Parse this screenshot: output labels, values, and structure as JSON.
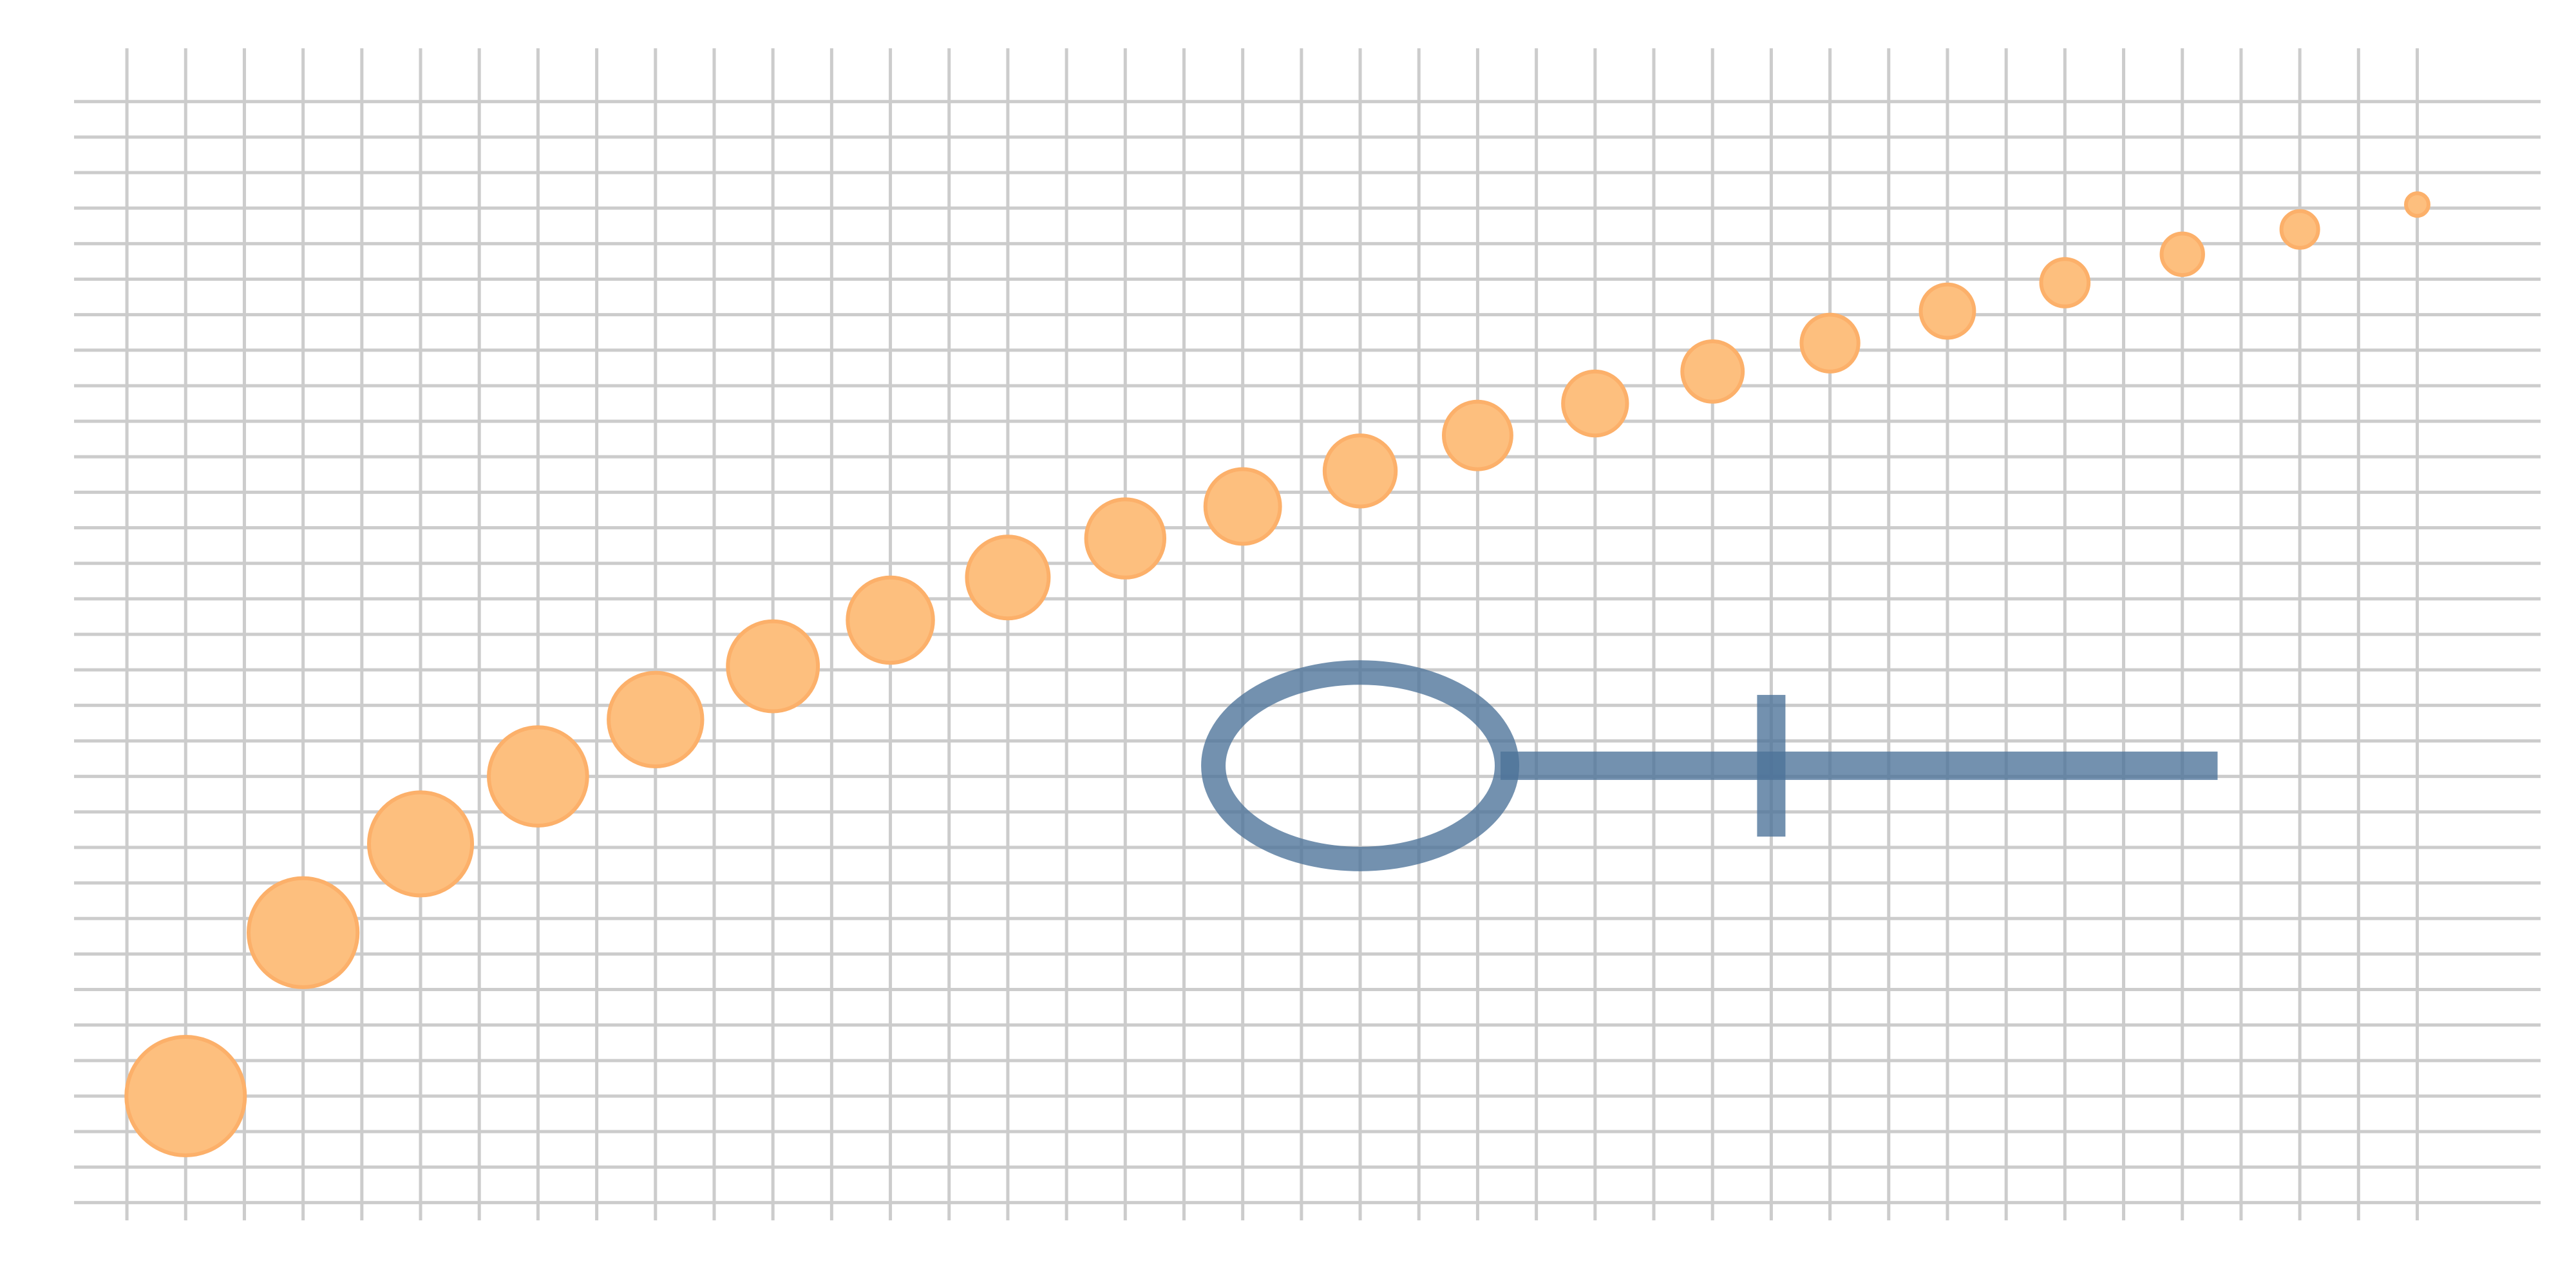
{
  "chart_data": {
    "type": "scatter",
    "title": "",
    "xlabel": "",
    "ylabel": "",
    "grid": true,
    "legend": "none",
    "xlim": [
      -1.9,
      40.1
    ],
    "ylim": [
      -1.5,
      31.5
    ],
    "series": [
      {
        "x": [
          0,
          2,
          4,
          6,
          8,
          10,
          12,
          14,
          16,
          18,
          20,
          22,
          24,
          26,
          28,
          30,
          32,
          34,
          36,
          38
        ],
        "y": [
          2,
          6.6,
          9.1,
          11,
          12.6,
          14.1,
          15.4,
          16.6,
          17.7,
          18.6,
          19.6,
          20.6,
          21.5,
          22.4,
          23.2,
          24.1,
          24.9,
          25.7,
          26.4,
          27.1
        ],
        "size": [
          1.0,
          0.92,
          0.87,
          0.83,
          0.79,
          0.76,
          0.72,
          0.69,
          0.66,
          0.63,
          0.6,
          0.57,
          0.54,
          0.51,
          0.48,
          0.45,
          0.4,
          0.35,
          0.31,
          0.19
        ],
        "color": "#fdbf7e"
      }
    ],
    "symbol": {
      "icon": "transit-of-venus-symbol",
      "color": "#4b7299",
      "center": [
        20,
        11.3
      ],
      "radius": 2.5,
      "bar_end": 34.6,
      "cross_x": 27
    }
  }
}
